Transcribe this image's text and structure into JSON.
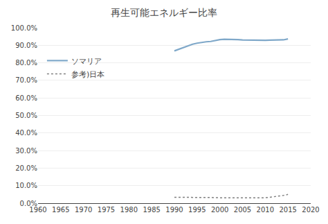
{
  "chart_data": {
    "type": "line",
    "title": "再生可能エネルギー比率",
    "x": [
      1990,
      1991,
      1992,
      1993,
      1994,
      1995,
      1996,
      1997,
      1998,
      1999,
      2000,
      2001,
      2002,
      2003,
      2004,
      2005,
      2006,
      2007,
      2008,
      2009,
      2010,
      2011,
      2012,
      2013,
      2014,
      2015
    ],
    "series": [
      {
        "name": "ソマリア",
        "color": "#7fa8c9",
        "line_style": "solid",
        "values": [
          0.868,
          0.878,
          0.889,
          0.898,
          0.906,
          0.912,
          0.917,
          0.92,
          0.922,
          0.928,
          0.932,
          0.934,
          0.934,
          0.933,
          0.932,
          0.93,
          0.929,
          0.928,
          0.927,
          0.928,
          0.928,
          0.929,
          0.929,
          0.93,
          0.931,
          0.936
        ]
      },
      {
        "name": "参考)日本",
        "color": "#808080",
        "line_style": "dotted",
        "values": [
          0.034,
          0.034,
          0.033,
          0.034,
          0.034,
          0.033,
          0.032,
          0.033,
          0.033,
          0.032,
          0.031,
          0.031,
          0.031,
          0.031,
          0.031,
          0.031,
          0.031,
          0.031,
          0.031,
          0.031,
          0.031,
          0.034,
          0.037,
          0.04,
          0.044,
          0.05
        ]
      }
    ],
    "xlim": [
      1960,
      2020
    ],
    "ylim": [
      0.0,
      1.0
    ],
    "xticks": [
      1960,
      1965,
      1970,
      1975,
      1980,
      1985,
      1990,
      1995,
      2000,
      2005,
      2010,
      2015,
      2020
    ],
    "yticks": [
      {
        "value": 0.0,
        "label": "0.0%"
      },
      {
        "value": 0.1,
        "label": "10.0%"
      },
      {
        "value": 0.2,
        "label": "20.0%"
      },
      {
        "value": 0.3,
        "label": "30.0%"
      },
      {
        "value": 0.4,
        "label": "40.0%"
      },
      {
        "value": 0.5,
        "label": "50.0%"
      },
      {
        "value": 0.6,
        "label": "60.0%"
      },
      {
        "value": 0.7,
        "label": "70.0%"
      },
      {
        "value": 0.8,
        "label": "80.0%"
      },
      {
        "value": 0.9,
        "label": "90.0%"
      },
      {
        "value": 1.0,
        "label": "100.0%"
      }
    ],
    "grid": "y",
    "legend": "upper left"
  }
}
